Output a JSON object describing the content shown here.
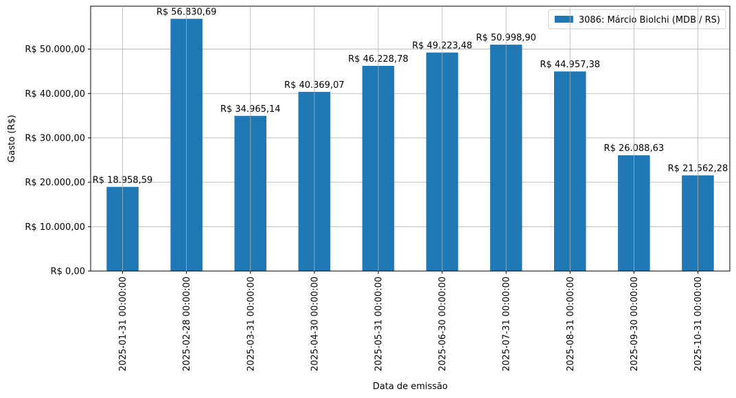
{
  "chart_data": {
    "type": "bar",
    "title": "",
    "xlabel": "Data de emissão",
    "ylabel": "Gasto (R$)",
    "categories": [
      "2025-01-31 00:00:00",
      "2025-02-28 00:00:00",
      "2025-03-31 00:00:00",
      "2025-04-30 00:00:00",
      "2025-05-31 00:00:00",
      "2025-06-30 00:00:00",
      "2025-07-31 00:00:00",
      "2025-08-31 00:00:00",
      "2025-09-30 00:00:00",
      "2025-10-31 00:00:00"
    ],
    "series": [
      {
        "name": "3086: Márcio Biolchi (MDB / RS)",
        "color": "#1f77b4",
        "values": [
          18958.59,
          56830.69,
          34965.14,
          40369.07,
          46228.78,
          49223.48,
          50998.9,
          44957.38,
          26088.63,
          21562.28
        ],
        "data_labels": [
          "R$ 18.958,59",
          "R$ 56.830,69",
          "R$ 34.965,14",
          "R$ 40.369,07",
          "R$ 46.228,78",
          "R$ 49.223,48",
          "R$ 50.998,90",
          "R$ 44.957,38",
          "R$ 26.088,63",
          "R$ 21.562,28"
        ]
      }
    ],
    "yticks": [
      0,
      10000,
      20000,
      30000,
      40000,
      50000
    ],
    "ytick_labels": [
      "R$ 0,00",
      "R$ 10.000,00",
      "R$ 20.000,00",
      "R$ 30.000,00",
      "R$ 40.000,00",
      "R$ 50.000,00"
    ],
    "ylim": [
      0,
      59672.22
    ],
    "grid": true,
    "legend_position": "top-right"
  }
}
